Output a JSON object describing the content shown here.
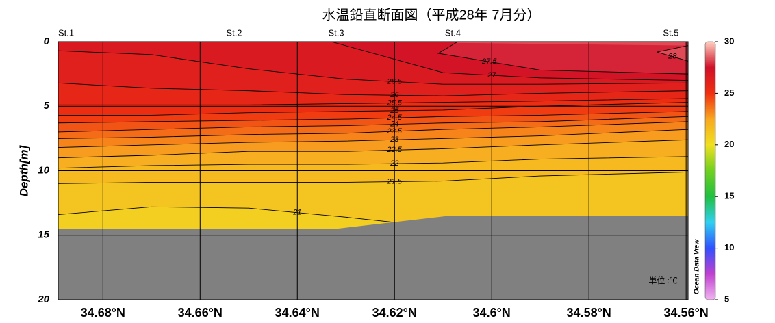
{
  "chart_data": {
    "type": "contour",
    "title": "水温鉛直断面図（平成28年 7月分）",
    "y_label": "Depth[m]",
    "unit_label": "単位 :℃",
    "watermark": "Ocean Data View",
    "xlim": [
      34.6892,
      34.5596
    ],
    "xticks": [
      {
        "value": 34.68,
        "label": "34.68°N"
      },
      {
        "value": 34.66,
        "label": "34.66°N"
      },
      {
        "value": 34.64,
        "label": "34.64°N"
      },
      {
        "value": 34.62,
        "label": "34.62°N"
      },
      {
        "value": 34.6,
        "label": "34.6°N"
      },
      {
        "value": 34.58,
        "label": "34.58°N"
      },
      {
        "value": 34.56,
        "label": "34.56°N"
      }
    ],
    "ylim": [
      0,
      20
    ],
    "yticks": [
      0,
      5,
      10,
      15,
      20
    ],
    "grid": true,
    "stations": [
      {
        "name": "St.1",
        "x": 34.6892
      },
      {
        "name": "St.2",
        "x": 34.653
      },
      {
        "name": "St.3",
        "x": 34.632
      },
      {
        "name": "St.4",
        "x": 34.608
      },
      {
        "name": "St.5",
        "x": 34.5615
      }
    ],
    "colorbar": {
      "lim": [
        5,
        30
      ],
      "ticks": [
        5,
        10,
        15,
        20,
        25,
        30
      ],
      "colors": [
        "#f0b4f0",
        "#c040d0",
        "#3050ff",
        "#30d0f0",
        "#20c040",
        "#70d020",
        "#f0e020",
        "#f8a820",
        "#f03010",
        "#d01028",
        "#ffd0c0"
      ]
    },
    "bottom": {
      "color": "#808080",
      "x": [
        34.6892,
        34.632,
        34.609,
        34.5596
      ],
      "depth": [
        14.5,
        14.5,
        13.5,
        13.5
      ]
    },
    "contours": [
      {
        "level": 28,
        "x": [
          34.5596,
          34.566,
          34.5596
        ],
        "depth": [
          0.3,
          0.8,
          1.5
        ]
      },
      {
        "level": 27.5,
        "x": [
          34.607,
          34.611,
          34.59,
          34.5596
        ],
        "depth": [
          0,
          0.9,
          2.2,
          2.5
        ]
      },
      {
        "level": 27,
        "x": [
          34.633,
          34.61,
          34.59,
          34.5596
        ],
        "depth": [
          0,
          2.4,
          2.8,
          3.0
        ]
      },
      {
        "level": 26.5,
        "x": [
          34.6892,
          34.67,
          34.65,
          34.63,
          34.61,
          34.59,
          34.5596
        ],
        "depth": [
          0.7,
          1.0,
          2.1,
          2.9,
          3.3,
          3.3,
          3.2
        ]
      },
      {
        "level": 26,
        "x": [
          34.6892,
          34.67,
          34.65,
          34.63,
          34.61,
          34.59,
          34.5596
        ],
        "depth": [
          3.2,
          3.6,
          3.8,
          4.1,
          4.2,
          4.0,
          3.8
        ]
      },
      {
        "level": 25.5,
        "x": [
          34.6892,
          34.67,
          34.65,
          34.63,
          34.61,
          34.59,
          34.5596
        ],
        "depth": [
          4.9,
          4.9,
          4.9,
          4.8,
          4.7,
          4.6,
          4.4
        ]
      },
      {
        "level": 25,
        "x": [
          34.6892,
          34.67,
          34.65,
          34.63,
          34.61,
          34.59,
          34.5596
        ],
        "depth": [
          5.7,
          5.7,
          5.5,
          5.4,
          5.3,
          5.0,
          4.7
        ]
      },
      {
        "level": 24.5,
        "x": [
          34.6892,
          34.67,
          34.65,
          34.63,
          34.61,
          34.59,
          34.5596
        ],
        "depth": [
          6.3,
          6.2,
          6.1,
          6.0,
          5.8,
          5.7,
          5.4
        ]
      },
      {
        "level": 24,
        "x": [
          34.6892,
          34.67,
          34.65,
          34.63,
          34.61,
          34.59,
          34.5596
        ],
        "depth": [
          7.0,
          6.8,
          6.6,
          6.5,
          6.3,
          6.2,
          5.8
        ]
      },
      {
        "level": 23.5,
        "x": [
          34.6892,
          34.67,
          34.65,
          34.63,
          34.61,
          34.59,
          34.5596
        ],
        "depth": [
          7.5,
          7.4,
          7.2,
          7.1,
          6.8,
          6.6,
          6.2
        ]
      },
      {
        "level": 23,
        "x": [
          34.6892,
          34.67,
          34.65,
          34.63,
          34.61,
          34.59,
          34.5596
        ],
        "depth": [
          8.2,
          8.0,
          7.8,
          7.7,
          7.5,
          7.3,
          6.8
        ]
      },
      {
        "level": 22.5,
        "x": [
          34.6892,
          34.67,
          34.65,
          34.63,
          34.61,
          34.59,
          34.5596
        ],
        "depth": [
          9.0,
          8.8,
          8.5,
          8.5,
          8.3,
          8.0,
          7.6
        ]
      },
      {
        "level": 22,
        "x": [
          34.6892,
          34.67,
          34.65,
          34.63,
          34.61,
          34.59,
          34.5596
        ],
        "depth": [
          9.8,
          9.6,
          9.5,
          9.5,
          9.4,
          9.1,
          8.9
        ]
      },
      {
        "level": 21.5,
        "x": [
          34.6892,
          34.67,
          34.65,
          34.63,
          34.61,
          34.59,
          34.5596
        ],
        "depth": [
          11.0,
          10.9,
          10.9,
          10.9,
          10.8,
          10.4,
          10.1
        ]
      },
      {
        "level": 21,
        "x": [
          34.6892,
          34.67,
          34.65,
          34.63,
          34.62
        ],
        "depth": [
          13.4,
          12.8,
          12.9,
          13.6,
          14.0
        ]
      }
    ]
  }
}
